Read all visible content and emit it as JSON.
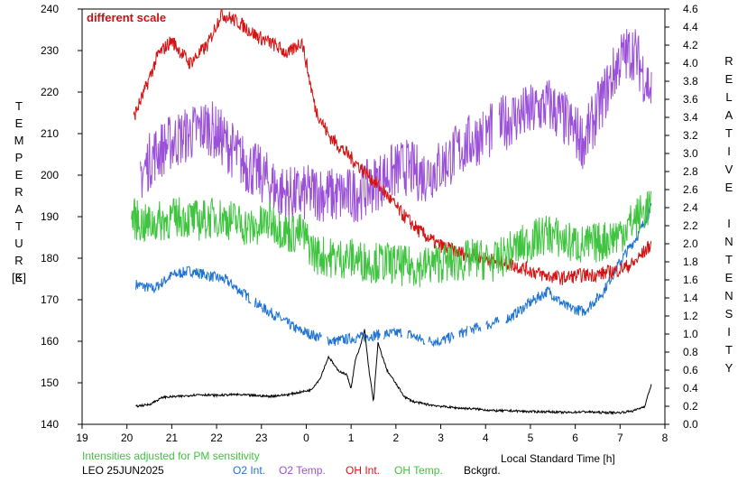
{
  "chart_data": {
    "type": "line",
    "annotation": "different scale",
    "left_axis_title": "TEMPERATURE",
    "left_axis_unit": "[K]",
    "right_axis_title": "RELATIVE INTENSITY",
    "x_axis_title": "Local Standard Time [h]",
    "footnote": "Intensities adjusted for PM sensitivity",
    "station_date": "LEO 25JUN2025",
    "x_ticks": [
      "19",
      "20",
      "21",
      "22",
      "23",
      "0",
      "1",
      "2",
      "3",
      "4",
      "5",
      "6",
      "7",
      "8"
    ],
    "x_range_hours_after_19": [
      0,
      13
    ],
    "left_ylim": [
      140,
      240
    ],
    "left_ticks": [
      140,
      150,
      160,
      170,
      180,
      190,
      200,
      210,
      220,
      230,
      240
    ],
    "right_ylim": [
      0.0,
      4.6
    ],
    "right_ticks": [
      "0.0",
      "0.2",
      "0.4",
      "0.6",
      "0.8",
      "1.0",
      "1.2",
      "1.4",
      "1.6",
      "1.8",
      "2.0",
      "2.2",
      "2.4",
      "2.6",
      "2.8",
      "3.0",
      "3.2",
      "3.4",
      "3.6",
      "3.8",
      "4.0",
      "4.2",
      "4.4",
      "4.6"
    ],
    "grid": false,
    "series": [
      {
        "key": "o2int",
        "name": "O2 Int.",
        "color": "#1f73d1",
        "axis": "right",
        "x": [
          20.2,
          20.6,
          21.0,
          21.4,
          21.8,
          22.2,
          22.6,
          23.0,
          23.4,
          23.8,
          0.2,
          0.6,
          1.0,
          1.4,
          1.8,
          2.2,
          2.6,
          3.0,
          3.4,
          3.8,
          4.2,
          4.6,
          5.0,
          5.4,
          5.8,
          6.2,
          6.6,
          7.0,
          7.4,
          7.7
        ],
        "y": [
          1.55,
          1.5,
          1.65,
          1.7,
          1.65,
          1.6,
          1.45,
          1.3,
          1.18,
          1.05,
          0.98,
          0.92,
          0.95,
          0.98,
          1.0,
          1.02,
          0.93,
          0.92,
          1.0,
          1.07,
          1.12,
          1.2,
          1.35,
          1.48,
          1.3,
          1.25,
          1.45,
          1.8,
          2.1,
          2.4
        ]
      },
      {
        "key": "o2temp",
        "name": "O2 Temp.",
        "color": "#9a50d8",
        "axis": "left",
        "x": [
          20.3,
          20.6,
          21.0,
          21.4,
          21.8,
          22.2,
          22.6,
          23.0,
          23.4,
          23.8,
          0.2,
          0.6,
          1.0,
          1.4,
          1.8,
          2.2,
          2.6,
          3.0,
          3.4,
          3.8,
          4.2,
          4.6,
          5.0,
          5.4,
          5.8,
          6.2,
          6.6,
          7.0,
          7.3,
          7.7
        ],
        "y": [
          200,
          205,
          208,
          210,
          212,
          208,
          203,
          200,
          196,
          195,
          196,
          195,
          195,
          197,
          200,
          202,
          200,
          202,
          206,
          209,
          211,
          214,
          215,
          217,
          213,
          208,
          218,
          228,
          230,
          220
        ]
      },
      {
        "key": "ohint",
        "name": "OH Int.",
        "color": "#d41414",
        "axis": "right",
        "x": [
          20.15,
          20.4,
          20.7,
          21.0,
          21.4,
          21.8,
          22.1,
          22.5,
          22.9,
          23.3,
          23.6,
          23.9,
          0.2,
          0.5,
          0.9,
          1.3,
          1.7,
          2.1,
          2.5,
          2.9,
          3.3,
          3.7,
          4.1,
          4.5,
          4.9,
          5.3,
          5.7,
          6.1,
          6.5,
          6.9,
          7.3,
          7.7
        ],
        "y": [
          3.4,
          3.7,
          4.1,
          4.25,
          4.0,
          4.2,
          4.55,
          4.45,
          4.3,
          4.2,
          4.1,
          4.25,
          3.5,
          3.2,
          3.0,
          2.8,
          2.6,
          2.35,
          2.15,
          2.0,
          1.92,
          1.87,
          1.82,
          1.78,
          1.72,
          1.65,
          1.62,
          1.65,
          1.66,
          1.7,
          1.78,
          2.0
        ]
      },
      {
        "key": "ohtemp",
        "name": "OH Temp.",
        "color": "#3ec43e",
        "axis": "left",
        "x": [
          20.1,
          20.4,
          20.8,
          21.2,
          21.6,
          22.0,
          22.4,
          22.8,
          23.2,
          23.6,
          23.9,
          0.2,
          0.6,
          1.0,
          1.4,
          1.8,
          2.2,
          2.6,
          3.0,
          3.4,
          3.8,
          4.2,
          4.6,
          5.0,
          5.4,
          5.8,
          6.2,
          6.6,
          7.0,
          7.4,
          7.7
        ],
        "y": [
          190,
          188,
          189,
          190,
          189,
          190,
          189,
          187,
          189,
          186,
          186,
          181,
          180,
          180,
          179,
          179,
          178,
          178,
          179,
          179,
          180,
          179,
          182,
          184,
          186,
          184,
          183,
          184,
          186,
          190,
          193
        ]
      },
      {
        "key": "bckgrd",
        "name": "Bckgrd.",
        "color": "#000000",
        "axis": "right",
        "x": [
          20.2,
          20.5,
          20.8,
          21.2,
          21.6,
          22.0,
          22.4,
          22.8,
          23.2,
          23.6,
          23.9,
          0.1,
          0.3,
          0.5,
          0.7,
          0.9,
          1.0,
          1.1,
          1.2,
          1.3,
          1.4,
          1.5,
          1.6,
          1.8,
          2.0,
          2.2,
          2.4,
          2.7,
          3.0,
          3.4,
          3.8,
          4.2,
          4.6,
          5.0,
          5.4,
          5.8,
          6.2,
          6.6,
          7.0,
          7.3,
          7.55,
          7.7
        ],
        "y": [
          0.2,
          0.22,
          0.3,
          0.31,
          0.33,
          0.32,
          0.33,
          0.32,
          0.31,
          0.33,
          0.36,
          0.38,
          0.5,
          0.75,
          0.6,
          0.55,
          0.4,
          0.72,
          0.85,
          1.05,
          0.6,
          0.25,
          0.9,
          0.6,
          0.45,
          0.3,
          0.25,
          0.22,
          0.2,
          0.18,
          0.17,
          0.15,
          0.15,
          0.14,
          0.14,
          0.13,
          0.14,
          0.13,
          0.13,
          0.15,
          0.2,
          0.45
        ]
      }
    ],
    "noise": {
      "o2int": 0.06,
      "o2temp": 7,
      "ohint": 0.08,
      "ohtemp": 5,
      "bckgrd": 0.012
    },
    "gaps": {
      "o2int": [
        [
          22.78,
          22.85
        ],
        [
          0.35,
          0.45
        ],
        [
          1.65,
          1.72
        ],
        [
          2.15,
          2.25
        ],
        [
          2.65,
          2.72
        ],
        [
          3.3,
          3.4
        ],
        [
          3.6,
          3.65
        ],
        [
          3.9,
          4.0
        ],
        [
          4.3,
          4.45
        ]
      ],
      "o2temp": [
        [
          3.95,
          4.0
        ],
        [
          4.15,
          4.3
        ]
      ]
    }
  }
}
